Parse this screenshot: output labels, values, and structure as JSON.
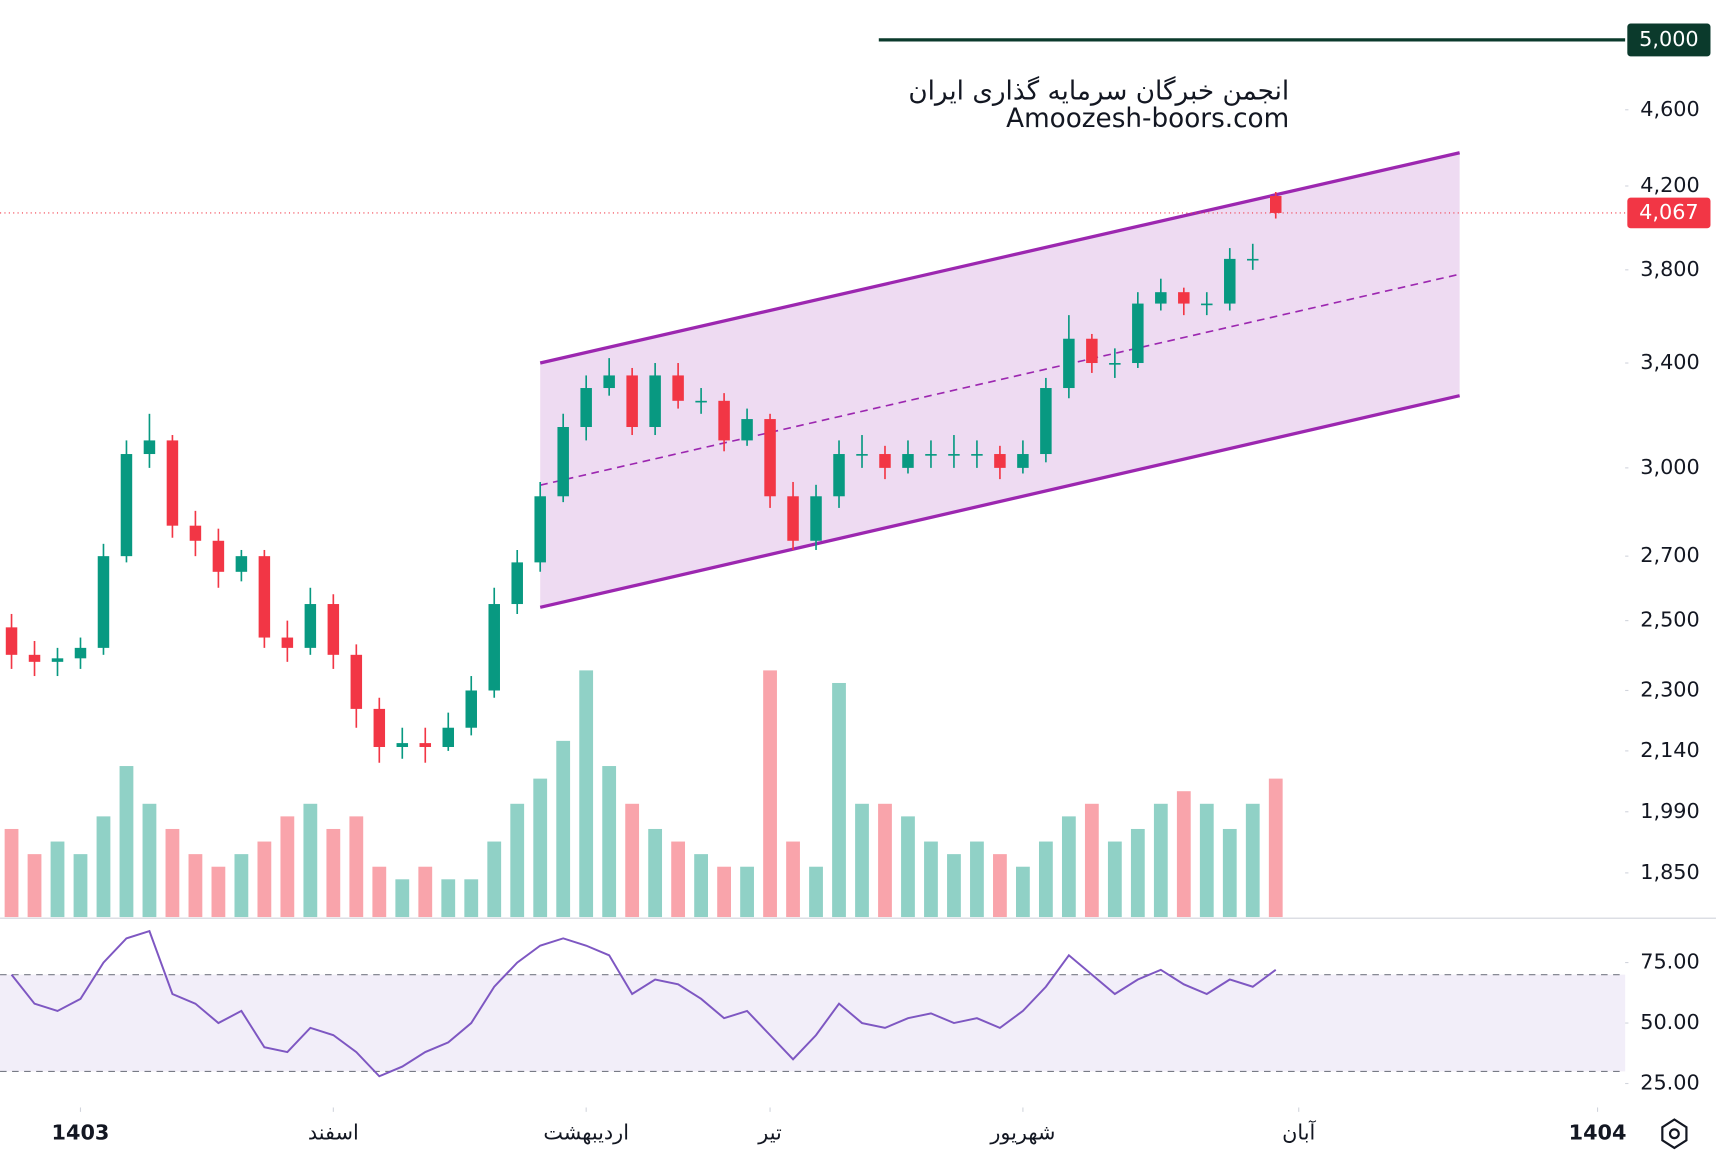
{
  "chart_data": {
    "type": "candlestick",
    "watermark": [
      "انجمن خبرگان سرمایه گذاری ایران",
      "Amoozesh-boors.com"
    ],
    "xlim": [
      -0.5,
      70.2
    ],
    "xticks": [
      {
        "value": 3,
        "label": "1403"
      },
      {
        "value": 14,
        "label": "اسفند"
      },
      {
        "value": 25,
        "label": "اردیبهشت"
      },
      {
        "value": 33,
        "label": "تیر"
      },
      {
        "value": 44,
        "label": "شهریور"
      },
      {
        "value": 56,
        "label": "آبان"
      },
      {
        "value": 69,
        "label": "1404"
      }
    ],
    "log_scale": true,
    "ylim": [
      1755,
      5244
    ],
    "yticks": [
      {
        "value": 4600,
        "label": "4,600"
      },
      {
        "value": 4200,
        "label": "4,200"
      },
      {
        "value": 3800,
        "label": "3,800"
      },
      {
        "value": 3400,
        "label": "3,400"
      },
      {
        "value": 3000,
        "label": "3,000"
      },
      {
        "value": 2700,
        "label": "2,700"
      },
      {
        "value": 2500,
        "label": "2,500"
      },
      {
        "value": 2300,
        "label": "2,300"
      },
      {
        "value": 2140,
        "label": "2,140"
      },
      {
        "value": 1990,
        "label": "1,990"
      },
      {
        "value": 1850,
        "label": "1,850"
      }
    ],
    "up_color": "#089981",
    "down_color": "#f23645",
    "open": [
      2480,
      2400,
      2380,
      2390,
      2420,
      2700,
      3050,
      3100,
      2800,
      2750,
      2650,
      2700,
      2450,
      2420,
      2550,
      2400,
      2250,
      2150,
      2160,
      2150,
      2200,
      2300,
      2550,
      2680,
      2900,
      3150,
      3300,
      3350,
      3150,
      3350,
      3250,
      3250,
      3100,
      3180,
      2900,
      2750,
      2900,
      3050,
      3050,
      3000,
      3050,
      3050,
      3050,
      3050,
      3000,
      3050,
      3300,
      3500,
      3400,
      3400,
      3650,
      3700,
      3650,
      3650,
      3850,
      4150
    ],
    "high": [
      2520,
      2440,
      2420,
      2450,
      2740,
      3100,
      3200,
      3120,
      2850,
      2790,
      2720,
      2720,
      2500,
      2600,
      2580,
      2430,
      2280,
      2200,
      2200,
      2240,
      2340,
      2600,
      2720,
      2950,
      3200,
      3350,
      3420,
      3380,
      3400,
      3400,
      3300,
      3280,
      3220,
      3200,
      2950,
      2940,
      3100,
      3120,
      3080,
      3100,
      3100,
      3120,
      3100,
      3080,
      3100,
      3340,
      3600,
      3520,
      3460,
      3700,
      3760,
      3720,
      3700,
      3900,
      3920,
      4170
    ],
    "low": [
      2360,
      2340,
      2340,
      2360,
      2400,
      2680,
      3000,
      2760,
      2700,
      2600,
      2620,
      2420,
      2380,
      2400,
      2360,
      2200,
      2110,
      2120,
      2110,
      2140,
      2180,
      2280,
      2520,
      2650,
      2880,
      3100,
      3270,
      3120,
      3120,
      3220,
      3200,
      3060,
      3080,
      2860,
      2720,
      2720,
      2860,
      3000,
      2960,
      2980,
      3000,
      3000,
      3000,
      2960,
      2980,
      3020,
      3260,
      3360,
      3340,
      3380,
      3620,
      3600,
      3600,
      3620,
      3800,
      4040
    ],
    "close": [
      2400,
      2380,
      2390,
      2420,
      2700,
      3050,
      3100,
      2800,
      2750,
      2650,
      2700,
      2450,
      2420,
      2550,
      2400,
      2250,
      2150,
      2160,
      2150,
      2200,
      2300,
      2550,
      2680,
      2900,
      3150,
      3300,
      3350,
      3150,
      3350,
      3250,
      3250,
      3100,
      3180,
      2900,
      2750,
      2900,
      3050,
      3050,
      3000,
      3050,
      3050,
      3050,
      3050,
      3000,
      3050,
      3300,
      3500,
      3400,
      3400,
      3650,
      3700,
      3650,
      3650,
      3850,
      3850,
      4067
    ],
    "volume": [
      35,
      25,
      30,
      25,
      40,
      60,
      45,
      35,
      25,
      20,
      25,
      30,
      40,
      45,
      35,
      40,
      20,
      15,
      20,
      15,
      15,
      30,
      45,
      55,
      70,
      98,
      60,
      45,
      35,
      30,
      25,
      20,
      20,
      98,
      30,
      20,
      93,
      45,
      45,
      40,
      30,
      25,
      30,
      25,
      20,
      30,
      40,
      45,
      30,
      35,
      45,
      50,
      45,
      35,
      45,
      55
    ],
    "volume_lim": [
      0,
      100
    ],
    "horizontal_line": {
      "value": 5000,
      "label": "5,000",
      "color": "#0b3a2c"
    },
    "last_price": {
      "value": 4067,
      "label": "4,067",
      "color": "#f23645"
    },
    "channel": {
      "x": [
        23,
        63
      ],
      "upper": [
        3400,
        4370
      ],
      "lower": [
        2540,
        3270
      ],
      "color": "#9c27b0"
    },
    "rsi": {
      "values": [
        70,
        58,
        55,
        60,
        75,
        85,
        88,
        62,
        58,
        50,
        55,
        40,
        38,
        48,
        45,
        38,
        28,
        32,
        38,
        42,
        50,
        65,
        75,
        82,
        85,
        82,
        78,
        62,
        68,
        66,
        60,
        52,
        55,
        45,
        35,
        45,
        58,
        50,
        48,
        52,
        54,
        50,
        52,
        48,
        55,
        65,
        78,
        70,
        62,
        68,
        72,
        66,
        62,
        68,
        65,
        72
      ],
      "ylim": [
        16,
        92
      ],
      "yticks": [
        {
          "value": 75,
          "label": "75.00"
        },
        {
          "value": 50,
          "label": "50.00"
        },
        {
          "value": 25,
          "label": "25.00"
        }
      ],
      "band": [
        30,
        70
      ],
      "color": "#7e57c2"
    }
  }
}
